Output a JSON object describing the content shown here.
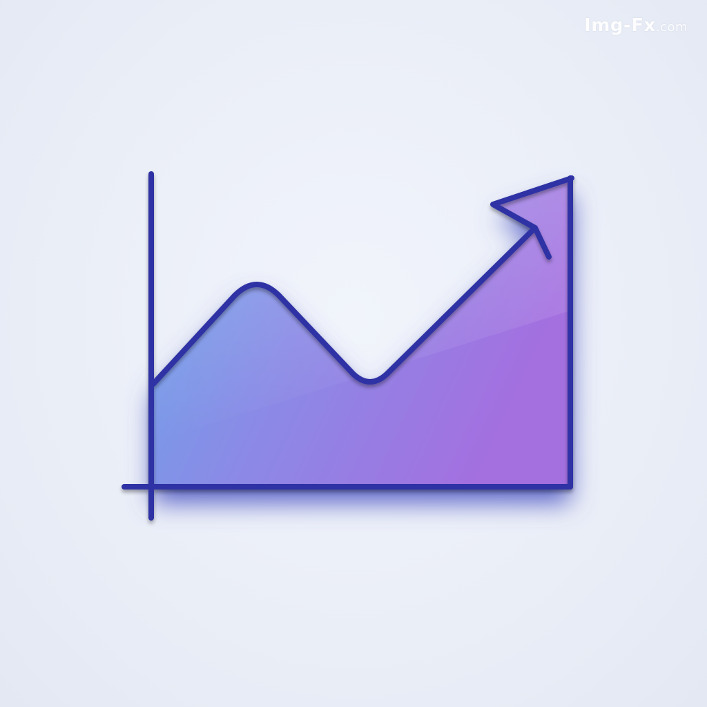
{
  "watermark": {
    "brand": "Img-Fx",
    "tld": ".com"
  },
  "icon": {
    "name": "area-chart-trend-up-icon",
    "colors": {
      "stroke": "#2f32a4",
      "fill_start": "#6aa6ea",
      "fill_mid": "#8a8be6",
      "fill_end": "#a46fe0",
      "background": "#eaeef7"
    }
  }
}
